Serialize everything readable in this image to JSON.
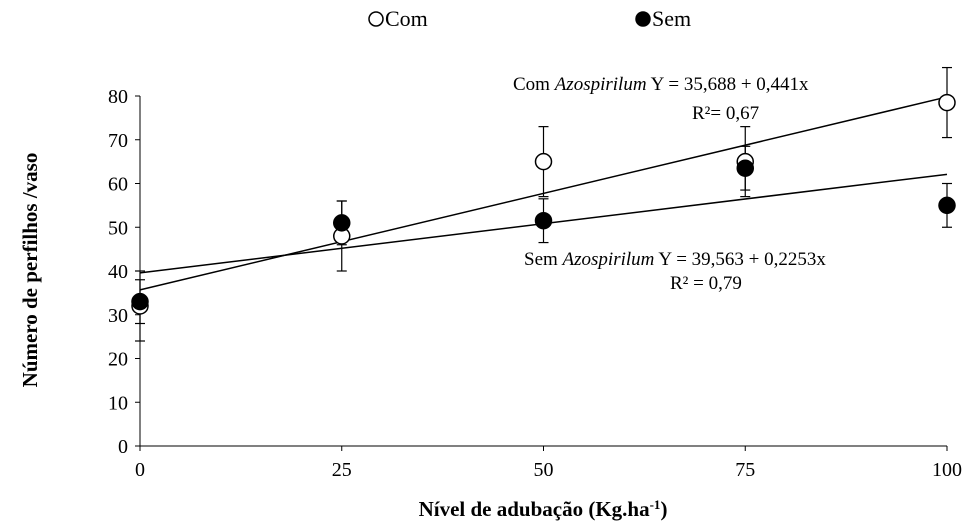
{
  "chart_data": {
    "type": "scatter",
    "xlabel": "Nível de adubação (Kg.ha",
    "xlabel_sup": "-1",
    "xlabel_close": ")",
    "ylabel": "Número de perfilhos /vaso",
    "xlim": [
      0,
      100
    ],
    "ylim": [
      0,
      80
    ],
    "xticks": [
      0,
      25,
      50,
      75,
      100
    ],
    "yticks": [
      0,
      10,
      20,
      30,
      40,
      50,
      60,
      70,
      80
    ],
    "grid": false,
    "legend_position": "top-center",
    "series": [
      {
        "name": "Com",
        "marker": "open-circle",
        "color": "#000000",
        "x": [
          0,
          25,
          50,
          75,
          100
        ],
        "y": [
          32,
          48,
          65,
          65,
          78.5
        ],
        "error": [
          8,
          8,
          8,
          8,
          8
        ],
        "trend": {
          "intercept": 35.688,
          "slope": 0.441
        },
        "equation": {
          "prefix": "Com ",
          "italic": "Azospirilum",
          "formula": " Y = 35,688 + 0,441x",
          "r2": "R²= 0,67"
        }
      },
      {
        "name": "Sem",
        "marker": "filled-circle",
        "color": "#000000",
        "x": [
          0,
          25,
          50,
          75,
          100
        ],
        "y": [
          33,
          51,
          51.5,
          63.5,
          55
        ],
        "error": [
          5,
          5,
          5,
          5,
          5
        ],
        "trend": {
          "intercept": 39.563,
          "slope": 0.2253
        },
        "equation": {
          "prefix": "Sem ",
          "italic": "Azospirilum",
          "formula": " Y = 39,563 + 0,2253x",
          "r2": "R² = 0,79"
        }
      }
    ]
  }
}
